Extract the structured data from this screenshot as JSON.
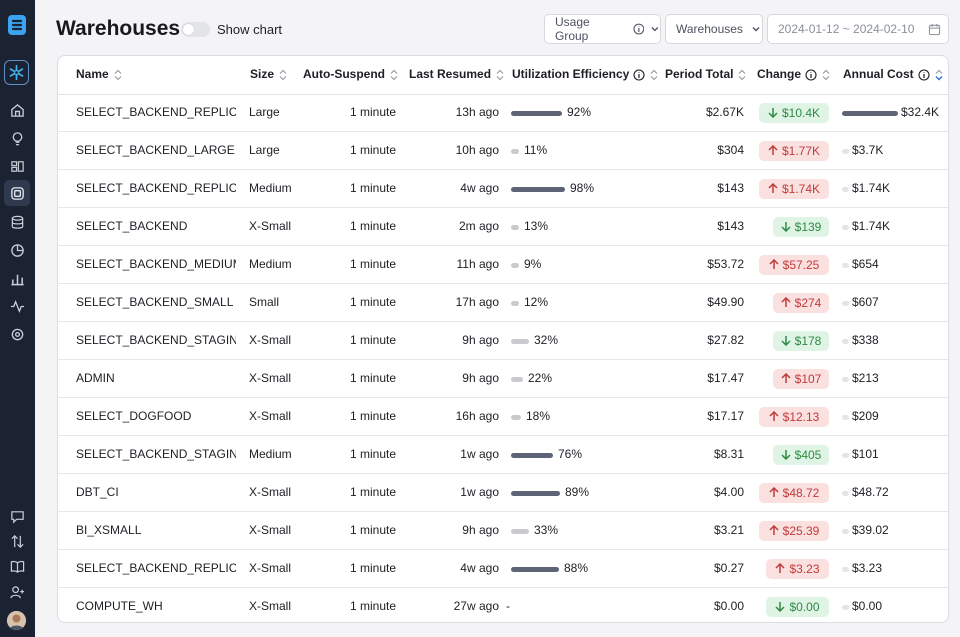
{
  "page": {
    "title": "Warehouses",
    "show_chart_label": "Show chart"
  },
  "filters": {
    "usage_group": "Usage Group",
    "warehouses": "Warehouses",
    "date_range": "2024-01-12 ~ 2024-02-10"
  },
  "columns": [
    "Name",
    "Size",
    "Auto-Suspend",
    "Last Resumed",
    "Utilization Efficiency",
    "Period Total",
    "Change",
    "Annual Cost"
  ],
  "colors": {
    "sidebar": "#1b2232",
    "bar_dark": "#5c6476",
    "bar_light": "#c8cace",
    "up": "#c23b3b",
    "down": "#2f8a45"
  },
  "rows": [
    {
      "name": "SELECT_BACKEND_REPLICA...",
      "size": "Large",
      "suspend": "1 minute",
      "resumed": "13h ago",
      "util": "92%",
      "util_value": 92,
      "total": "$2.67K",
      "change": "$10.4K",
      "dir": "down",
      "annual": "$32.4K",
      "annual_value": 32.4
    },
    {
      "name": "SELECT_BACKEND_LARGE",
      "size": "Large",
      "suspend": "1 minute",
      "resumed": "10h ago",
      "util": "11%",
      "util_value": 11,
      "total": "$304",
      "change": "$1.77K",
      "dir": "up",
      "annual": "$3.7K",
      "annual_value": 3.7
    },
    {
      "name": "SELECT_BACKEND_REPLICA...",
      "size": "Medium",
      "suspend": "1 minute",
      "resumed": "4w ago",
      "util": "98%",
      "util_value": 98,
      "total": "$143",
      "change": "$1.74K",
      "dir": "up",
      "annual": "$1.74K",
      "annual_value": 1.74
    },
    {
      "name": "SELECT_BACKEND",
      "size": "X-Small",
      "suspend": "1 minute",
      "resumed": "2m ago",
      "util": "13%",
      "util_value": 13,
      "total": "$143",
      "change": "$139",
      "dir": "down",
      "annual": "$1.74K",
      "annual_value": 1.74
    },
    {
      "name": "SELECT_BACKEND_MEDIUM",
      "size": "Medium",
      "suspend": "1 minute",
      "resumed": "11h ago",
      "util": "9%",
      "util_value": 9,
      "total": "$53.72",
      "change": "$57.25",
      "dir": "up",
      "annual": "$654",
      "annual_value": 0.654
    },
    {
      "name": "SELECT_BACKEND_SMALL",
      "size": "Small",
      "suspend": "1 minute",
      "resumed": "17h ago",
      "util": "12%",
      "util_value": 12,
      "total": "$49.90",
      "change": "$274",
      "dir": "up",
      "annual": "$607",
      "annual_value": 0.607
    },
    {
      "name": "SELECT_BACKEND_STAGING",
      "size": "X-Small",
      "suspend": "1 minute",
      "resumed": "9h ago",
      "util": "32%",
      "util_value": 32,
      "total": "$27.82",
      "change": "$178",
      "dir": "down",
      "annual": "$338",
      "annual_value": 0.338
    },
    {
      "name": "ADMIN",
      "size": "X-Small",
      "suspend": "1 minute",
      "resumed": "9h ago",
      "util": "22%",
      "util_value": 22,
      "total": "$17.47",
      "change": "$107",
      "dir": "up",
      "annual": "$213",
      "annual_value": 0.213
    },
    {
      "name": "SELECT_DOGFOOD",
      "size": "X-Small",
      "suspend": "1 minute",
      "resumed": "16h ago",
      "util": "18%",
      "util_value": 18,
      "total": "$17.17",
      "change": "$12.13",
      "dir": "up",
      "annual": "$209",
      "annual_value": 0.209
    },
    {
      "name": "SELECT_BACKEND_STAGING...",
      "size": "Medium",
      "suspend": "1 minute",
      "resumed": "1w ago",
      "util": "76%",
      "util_value": 76,
      "total": "$8.31",
      "change": "$405",
      "dir": "down",
      "annual": "$101",
      "annual_value": 0.101
    },
    {
      "name": "DBT_CI",
      "size": "X-Small",
      "suspend": "1 minute",
      "resumed": "1w ago",
      "util": "89%",
      "util_value": 89,
      "total": "$4.00",
      "change": "$48.72",
      "dir": "up",
      "annual": "$48.72",
      "annual_value": 0.0487
    },
    {
      "name": "BI_XSMALL",
      "size": "X-Small",
      "suspend": "1 minute",
      "resumed": "9h ago",
      "util": "33%",
      "util_value": 33,
      "total": "$3.21",
      "change": "$25.39",
      "dir": "up",
      "annual": "$39.02",
      "annual_value": 0.039
    },
    {
      "name": "SELECT_BACKEND_REPLICA...",
      "size": "X-Small",
      "suspend": "1 minute",
      "resumed": "4w ago",
      "util": "88%",
      "util_value": 88,
      "total": "$0.27",
      "change": "$3.23",
      "dir": "up",
      "annual": "$3.23",
      "annual_value": 0.0032
    },
    {
      "name": "COMPUTE_WH",
      "size": "X-Small",
      "suspend": "1 minute",
      "resumed": "27w ago",
      "util": "-",
      "util_value": null,
      "total": "$0.00",
      "change": "$0.00",
      "dir": "down",
      "annual": "$0.00",
      "annual_value": 0
    }
  ]
}
